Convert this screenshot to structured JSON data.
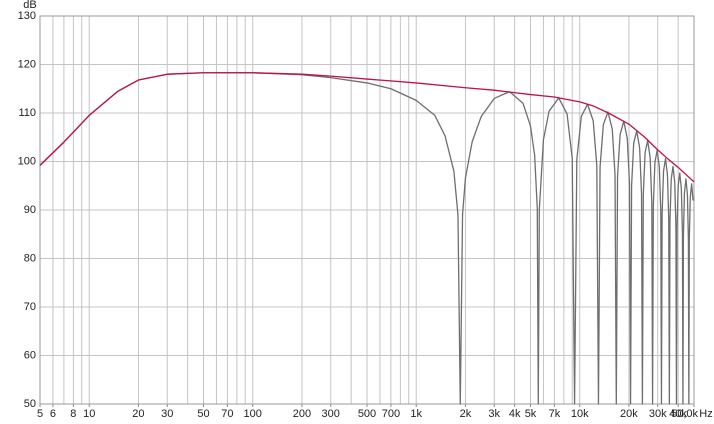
{
  "chart_data": {
    "type": "line",
    "ylabel": "dB",
    "xlabel": "Hz",
    "log_x": true,
    "grid": true,
    "xlim": [
      5,
      50000
    ],
    "ylim": [
      50,
      130
    ],
    "yticks": [
      50,
      60,
      70,
      80,
      90,
      100,
      110,
      120,
      130
    ],
    "xticks": [
      5,
      6,
      8,
      10,
      20,
      30,
      50,
      70,
      100,
      200,
      300,
      500,
      700,
      {
        "value": 1000,
        "label": "1k"
      },
      {
        "value": 2000,
        "label": "2k"
      },
      {
        "value": 3000,
        "label": "3k"
      },
      {
        "value": 4000,
        "label": "4k"
      },
      {
        "value": 5000,
        "label": "5k"
      },
      {
        "value": 7000,
        "label": "7k"
      },
      {
        "value": 10000,
        "label": "10k"
      },
      {
        "value": 20000,
        "label": "20k"
      },
      {
        "value": 30000,
        "label": "30k"
      },
      {
        "value": 40000,
        "label": "40k"
      },
      {
        "value": 50000,
        "label": "50,0k"
      }
    ],
    "xgrid": [
      5,
      6,
      7,
      8,
      9,
      10,
      20,
      30,
      40,
      50,
      60,
      70,
      80,
      90,
      100,
      200,
      300,
      400,
      500,
      600,
      700,
      800,
      900,
      1000,
      2000,
      3000,
      4000,
      5000,
      6000,
      7000,
      8000,
      9000,
      10000,
      20000,
      30000,
      40000,
      50000
    ],
    "series": [
      {
        "color": "#6e6e6e",
        "x": [
          5,
          7,
          10,
          15,
          20,
          30,
          50,
          100,
          200,
          300,
          500,
          700,
          1000,
          1300,
          1500,
          1700,
          1800,
          1860,
          1920,
          2000,
          2200,
          2500,
          3000,
          3720,
          4500,
          5000,
          5300,
          5500,
          5580,
          5660,
          6000,
          6500,
          7440,
          8370,
          9000,
          9300,
          9600,
          10230,
          11160,
          12090,
          12720,
          13020,
          13320,
          13950,
          14880,
          15810,
          16440,
          16740,
          17040,
          17670,
          18600,
          19530,
          20160,
          20460,
          20760,
          21390,
          22320,
          23250,
          23880,
          24180,
          24480,
          25110,
          26040,
          26970,
          27600,
          27900,
          28200,
          28830,
          29760,
          30690,
          31320,
          31620,
          31920,
          32550,
          33480,
          34410,
          35040,
          35340,
          35640,
          36270,
          37200,
          38130,
          38760,
          39060,
          39360,
          39990,
          40920,
          41850,
          42480,
          42780,
          43080,
          43710,
          44640,
          45570,
          46200,
          46500,
          46800,
          47430,
          48360,
          49290,
          50000
        ],
        "values": [
          99.2,
          104,
          109.5,
          114.5,
          116.8,
          118,
          118.3,
          118.3,
          117.9,
          117.3,
          116.2,
          115,
          112.6,
          109.5,
          105.3,
          98,
          89,
          50,
          89,
          96.6,
          104.1,
          109.3,
          113,
          114.4,
          112,
          107.3,
          101.3,
          90.4,
          50,
          90,
          104.5,
          110.4,
          113.1,
          109.8,
          100.6,
          50,
          100.4,
          109.3,
          111.8,
          108.4,
          99.2,
          50,
          98.9,
          107.6,
          110.2,
          106.7,
          97.3,
          50,
          97,
          105.6,
          108.3,
          104.8,
          95.4,
          50,
          95,
          103.8,
          106.3,
          102.8,
          93.4,
          50,
          93,
          101.8,
          104.3,
          100.8,
          91.4,
          50,
          91,
          99.8,
          102.3,
          98.9,
          89.6,
          50,
          89.3,
          98,
          100.6,
          97.2,
          87.9,
          50,
          87.6,
          96.3,
          99,
          95.6,
          86.4,
          50,
          86.1,
          94.9,
          97.6,
          94.3,
          85.1,
          50,
          84.8,
          93.6,
          96.4,
          93.1,
          84,
          50,
          83.7,
          92.6,
          95.4,
          92.1,
          92
        ]
      },
      {
        "color": "#c0104a",
        "x": [
          5,
          7,
          10,
          15,
          20,
          30,
          50,
          100,
          200,
          300,
          500,
          1000,
          2000,
          3000,
          5000,
          7000,
          10000,
          12000,
          15000,
          20000,
          25000,
          30000,
          35000,
          40000,
          45000,
          50000
        ],
        "values": [
          99.2,
          104,
          109.5,
          114.5,
          116.8,
          118,
          118.3,
          118.3,
          118,
          117.6,
          117,
          116.2,
          115.2,
          114.7,
          113.8,
          113.3,
          112.3,
          111.5,
          110,
          107.7,
          105,
          102.4,
          100.4,
          98.8,
          97.2,
          95.8
        ]
      }
    ]
  }
}
